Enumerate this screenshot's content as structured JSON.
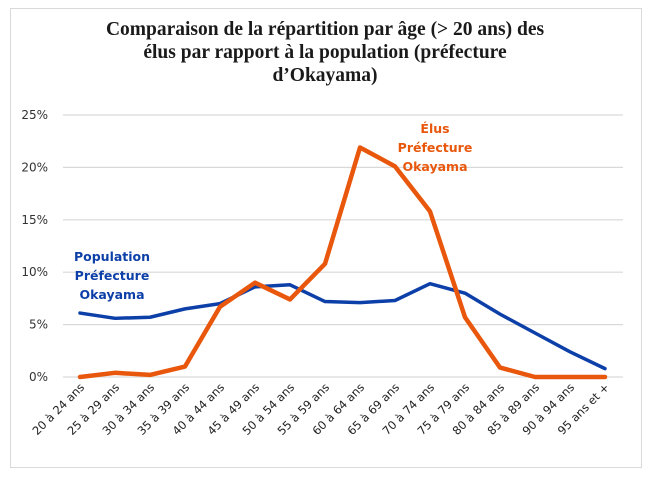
{
  "chart_data": {
    "type": "line",
    "title_lines": [
      "Comparaison de la répartition par âge (> 20 ans) des",
      "élus par rapport à la population (préfecture",
      "d’Okayama)"
    ],
    "xlabel": "",
    "ylabel": "",
    "ylim": [
      0,
      25
    ],
    "yticks": [
      0,
      5,
      10,
      15,
      20,
      25
    ],
    "ytick_labels": [
      "0%",
      "5%",
      "10%",
      "15%",
      "20%",
      "25%"
    ],
    "grid": true,
    "categories": [
      "20 à 24 ans",
      "25 à 29 ans",
      "30 à 34 ans",
      "35 à 39 ans",
      "40 à 44 ans",
      "45 à 49 ans",
      "50 à 54 ans",
      "55 à 59 ans",
      "60 à 64 ans",
      "65 à 69 ans",
      "70 à 74 ans",
      "75 à 79 ans",
      "80 à 84 ans",
      "85 à 89 ans",
      "90 à 94 ans",
      "95 ans et +"
    ],
    "series": [
      {
        "name": "Population Préfecture Okayama",
        "label_lines": [
          "Population",
          "Préfecture",
          "Okayama"
        ],
        "color": "#0d3fa8",
        "values": [
          6.1,
          5.6,
          5.7,
          6.5,
          7.0,
          8.6,
          8.8,
          7.2,
          7.1,
          7.3,
          8.9,
          8.0,
          6.0,
          4.2,
          2.4,
          0.8
        ]
      },
      {
        "name": "Élus Préfecture Okayama",
        "label_lines": [
          "Élus",
          "Préfecture",
          "Okayama"
        ],
        "color": "#e8570c",
        "values": [
          0.0,
          0.4,
          0.2,
          1.0,
          6.7,
          9.0,
          7.4,
          10.8,
          21.9,
          20.1,
          15.8,
          5.7,
          0.9,
          0.0,
          0.0,
          0.0
        ]
      }
    ]
  }
}
